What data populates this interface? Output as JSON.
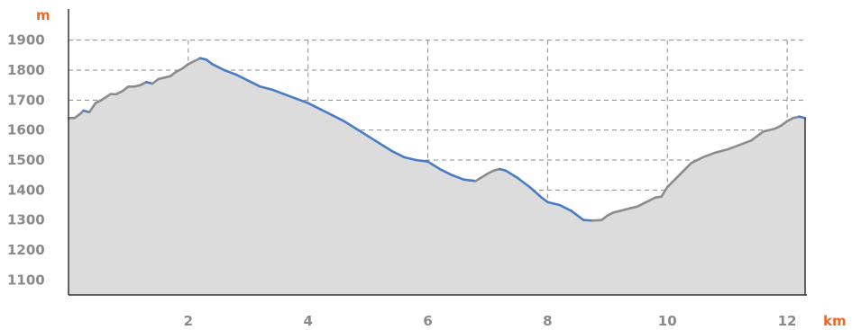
{
  "chart_data": {
    "type": "area",
    "xlabel": "km",
    "ylabel": "m",
    "xlim": [
      0,
      12.3
    ],
    "ylim": [
      1050,
      1950
    ],
    "x_ticks": [
      "2",
      "4",
      "6",
      "8",
      "10",
      "12"
    ],
    "y_ticks": [
      "1100",
      "1200",
      "1300",
      "1400",
      "1500",
      "1600",
      "1700",
      "1800",
      "1900"
    ],
    "grid": true,
    "colors": {
      "fill": "#dcdcdc",
      "line_gray": "#8c8c8c",
      "line_blue": "#4a7cc4",
      "grid": "#8a8a8a",
      "axis": "#333333",
      "unit_labels": "#e8692a",
      "tick_labels": "#8a8a8a"
    },
    "series": [
      {
        "x": [
          0,
          0.1,
          0.2,
          0.25,
          0.35,
          0.45,
          0.55,
          0.7,
          0.8,
          0.9,
          1.0,
          1.1,
          1.2,
          1.3,
          1.4,
          1.5,
          1.6,
          1.7,
          1.8,
          1.9,
          2.0,
          2.1,
          2.2,
          2.3,
          2.4,
          2.5,
          2.6,
          2.8,
          3.0,
          3.2,
          3.4,
          3.6,
          3.8,
          4.0,
          4.2,
          4.4,
          4.6,
          4.8,
          5.0,
          5.2,
          5.4,
          5.6,
          5.8,
          6.0,
          6.2,
          6.4,
          6.6,
          6.8,
          7.0,
          7.1,
          7.2,
          7.3,
          7.5,
          7.7,
          7.9,
          8.0,
          8.2,
          8.4,
          8.6,
          8.75,
          8.9,
          9.0,
          9.1,
          9.2,
          9.3,
          9.4,
          9.5,
          9.6,
          9.7,
          9.8,
          9.9,
          10.0,
          10.2,
          10.4,
          10.6,
          10.8,
          11.0,
          11.2,
          11.4,
          11.5,
          11.6,
          11.7,
          11.8,
          11.9,
          12.0,
          12.1,
          12.2,
          12.3
        ],
        "y": [
          1640,
          1640,
          1655,
          1665,
          1660,
          1690,
          1700,
          1720,
          1720,
          1730,
          1745,
          1745,
          1750,
          1760,
          1755,
          1770,
          1775,
          1780,
          1795,
          1805,
          1820,
          1830,
          1840,
          1835,
          1820,
          1810,
          1800,
          1785,
          1765,
          1745,
          1735,
          1720,
          1705,
          1690,
          1670,
          1650,
          1630,
          1605,
          1580,
          1555,
          1530,
          1510,
          1500,
          1495,
          1470,
          1450,
          1435,
          1430,
          1455,
          1465,
          1470,
          1465,
          1440,
          1410,
          1375,
          1360,
          1350,
          1330,
          1300,
          1298,
          1300,
          1315,
          1325,
          1330,
          1335,
          1340,
          1345,
          1355,
          1365,
          1375,
          1378,
          1410,
          1450,
          1490,
          1510,
          1525,
          1535,
          1550,
          1565,
          1580,
          1595,
          1600,
          1605,
          1615,
          1630,
          1640,
          1645,
          1640
        ]
      }
    ]
  }
}
